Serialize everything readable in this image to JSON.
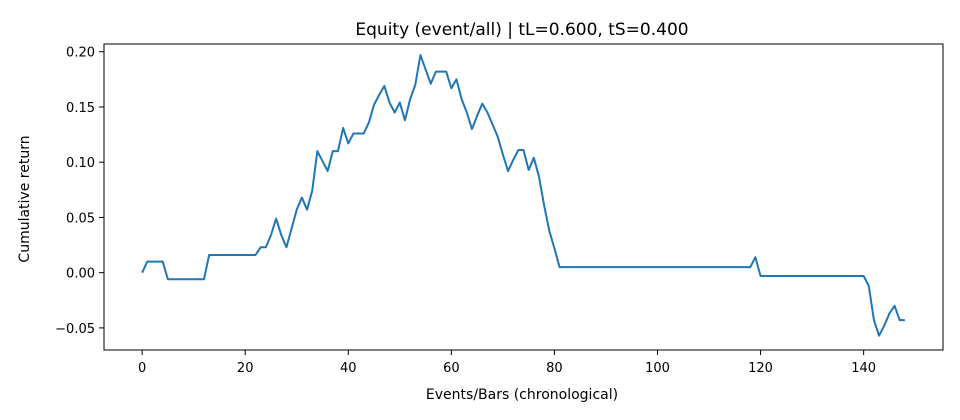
{
  "chart_data": {
    "type": "line",
    "title": "Equity (event/all) | tL=0.600, tS=0.400",
    "xlabel": "Events/Bars (chronological)",
    "ylabel": "Cumulative return",
    "xlim": [
      -7.4,
      155.4
    ],
    "ylim": [
      -0.07,
      0.207
    ],
    "xticks": [
      0,
      20,
      40,
      60,
      80,
      100,
      120,
      140
    ],
    "xtick_labels": [
      "0",
      "20",
      "40",
      "60",
      "80",
      "100",
      "120",
      "140"
    ],
    "yticks": [
      -0.05,
      0.0,
      0.05,
      0.1,
      0.15,
      0.2
    ],
    "ytick_labels": [
      "−0.05",
      "0.00",
      "0.05",
      "0.10",
      "0.15",
      "0.20"
    ],
    "grid": false,
    "legend": null,
    "series": [
      {
        "color": "#1f77b4",
        "x": [
          0,
          1,
          2,
          3,
          4,
          5,
          6,
          7,
          8,
          9,
          10,
          11,
          12,
          13,
          14,
          15,
          16,
          17,
          18,
          19,
          20,
          21,
          22,
          23,
          24,
          25,
          26,
          27,
          28,
          29,
          30,
          31,
          32,
          33,
          34,
          35,
          36,
          37,
          38,
          39,
          40,
          41,
          42,
          43,
          44,
          45,
          46,
          47,
          48,
          49,
          50,
          51,
          52,
          53,
          54,
          55,
          56,
          57,
          58,
          59,
          60,
          61,
          62,
          63,
          64,
          65,
          66,
          67,
          68,
          69,
          70,
          71,
          72,
          73,
          74,
          75,
          76,
          77,
          78,
          79,
          80,
          81,
          82,
          83,
          84,
          85,
          86,
          87,
          88,
          89,
          90,
          91,
          92,
          93,
          94,
          95,
          96,
          97,
          98,
          99,
          100,
          101,
          102,
          103,
          104,
          105,
          106,
          107,
          108,
          109,
          110,
          111,
          112,
          113,
          114,
          115,
          116,
          117,
          118,
          119,
          120,
          121,
          122,
          123,
          124,
          125,
          126,
          127,
          128,
          129,
          130,
          131,
          132,
          133,
          134,
          135,
          136,
          137,
          138,
          139,
          140,
          141,
          142,
          143,
          144,
          145,
          146,
          147,
          148
        ],
        "y": [
          0.0,
          0.01,
          0.01,
          0.01,
          0.01,
          -0.006,
          -0.006,
          -0.006,
          -0.006,
          -0.006,
          -0.006,
          -0.006,
          -0.006,
          0.016,
          0.016,
          0.016,
          0.016,
          0.016,
          0.016,
          0.016,
          0.016,
          0.016,
          0.016,
          0.023,
          0.023,
          0.034,
          0.049,
          0.034,
          0.023,
          0.04,
          0.057,
          0.068,
          0.057,
          0.074,
          0.11,
          0.101,
          0.092,
          0.11,
          0.11,
          0.131,
          0.117,
          0.126,
          0.126,
          0.126,
          0.136,
          0.152,
          0.161,
          0.169,
          0.154,
          0.145,
          0.154,
          0.138,
          0.157,
          0.17,
          0.197,
          0.184,
          0.171,
          0.182,
          0.182,
          0.182,
          0.167,
          0.175,
          0.157,
          0.145,
          0.13,
          0.142,
          0.153,
          0.145,
          0.134,
          0.123,
          0.107,
          0.092,
          0.102,
          0.111,
          0.111,
          0.093,
          0.104,
          0.087,
          0.061,
          0.038,
          0.022,
          0.005,
          0.005,
          0.005,
          0.005,
          0.005,
          0.005,
          0.005,
          0.005,
          0.005,
          0.005,
          0.005,
          0.005,
          0.005,
          0.005,
          0.005,
          0.005,
          0.005,
          0.005,
          0.005,
          0.005,
          0.005,
          0.005,
          0.005,
          0.005,
          0.005,
          0.005,
          0.005,
          0.005,
          0.005,
          0.005,
          0.005,
          0.005,
          0.005,
          0.005,
          0.005,
          0.005,
          0.005,
          0.005,
          0.014,
          -0.003,
          -0.003,
          -0.003,
          -0.003,
          -0.003,
          -0.003,
          -0.003,
          -0.003,
          -0.003,
          -0.003,
          -0.003,
          -0.003,
          -0.003,
          -0.003,
          -0.003,
          -0.003,
          -0.003,
          -0.003,
          -0.003,
          -0.003,
          -0.003,
          -0.012,
          -0.043,
          -0.057,
          -0.048,
          -0.037,
          -0.03,
          -0.043,
          -0.043
        ]
      }
    ]
  }
}
